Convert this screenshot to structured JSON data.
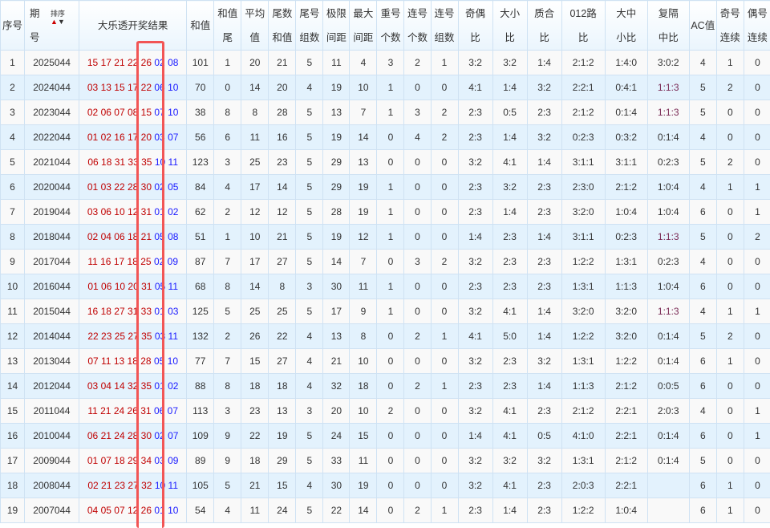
{
  "header": {
    "seq": "序号",
    "issue_top": "期",
    "issue_bottom": "号",
    "sort_label": "排序",
    "sort_up_icon": "arrow-up-icon",
    "sort_down_icon": "arrow-down-icon",
    "result": "大乐透开奖结果",
    "sum": "和值",
    "cols": [
      [
        "和值",
        "尾"
      ],
      [
        "平均",
        "值"
      ],
      [
        "尾数",
        "和值"
      ],
      [
        "尾号",
        "组数"
      ],
      [
        "极限",
        "间距"
      ],
      [
        "最大",
        "间距"
      ],
      [
        "重号",
        "个数"
      ],
      [
        "连号",
        "个数"
      ],
      [
        "连号",
        "组数"
      ],
      [
        "奇偶",
        "比"
      ],
      [
        "大小",
        "比"
      ],
      [
        "质合",
        "比"
      ],
      [
        "012路",
        "比"
      ],
      [
        "大中",
        "小比"
      ],
      [
        "复隔",
        "中比"
      ],
      [
        "AC值",
        ""
      ],
      [
        "奇号",
        "连续"
      ],
      [
        "偶号",
        "连续"
      ]
    ]
  },
  "colors": {
    "front": "#c00000",
    "back": "#1a1aff",
    "highlight_box": "#f25555",
    "row_alt": "#e3f2fd"
  },
  "rows": [
    {
      "seq": "1",
      "issue": "2025044",
      "front": [
        "15",
        "17",
        "21",
        "22",
        "26"
      ],
      "back": [
        "02",
        "08"
      ],
      "sum": "101",
      "stats": [
        "1",
        "20",
        "21",
        "5",
        "11",
        "4",
        "3",
        "2",
        "1",
        "3:2",
        "3:2",
        "1:4",
        "2:1:2",
        "1:4:0",
        "3:0:2",
        "4",
        "1",
        "0"
      ]
    },
    {
      "seq": "2",
      "issue": "2024044",
      "front": [
        "03",
        "13",
        "15",
        "17",
        "22"
      ],
      "back": [
        "06",
        "10"
      ],
      "sum": "70",
      "stats": [
        "0",
        "14",
        "20",
        "4",
        "19",
        "10",
        "1",
        "0",
        "0",
        "4:1",
        "1:4",
        "3:2",
        "2:2:1",
        "0:4:1",
        "1:1:3",
        "5",
        "2",
        "0"
      ]
    },
    {
      "seq": "3",
      "issue": "2023044",
      "front": [
        "02",
        "06",
        "07",
        "08",
        "15"
      ],
      "back": [
        "07",
        "10"
      ],
      "sum": "38",
      "stats": [
        "8",
        "8",
        "28",
        "5",
        "13",
        "7",
        "1",
        "3",
        "2",
        "2:3",
        "0:5",
        "2:3",
        "2:1:2",
        "0:1:4",
        "1:1:3",
        "5",
        "0",
        "0"
      ]
    },
    {
      "seq": "4",
      "issue": "2022044",
      "front": [
        "01",
        "02",
        "16",
        "17",
        "20"
      ],
      "back": [
        "03",
        "07"
      ],
      "sum": "56",
      "stats": [
        "6",
        "11",
        "16",
        "5",
        "19",
        "14",
        "0",
        "4",
        "2",
        "2:3",
        "1:4",
        "3:2",
        "0:2:3",
        "0:3:2",
        "0:1:4",
        "4",
        "0",
        "0"
      ]
    },
    {
      "seq": "5",
      "issue": "2021044",
      "front": [
        "06",
        "18",
        "31",
        "33",
        "35"
      ],
      "back": [
        "10",
        "11"
      ],
      "sum": "123",
      "stats": [
        "3",
        "25",
        "23",
        "5",
        "29",
        "13",
        "0",
        "0",
        "0",
        "3:2",
        "4:1",
        "1:4",
        "3:1:1",
        "3:1:1",
        "0:2:3",
        "5",
        "2",
        "0"
      ]
    },
    {
      "seq": "6",
      "issue": "2020044",
      "front": [
        "01",
        "03",
        "22",
        "28",
        "30"
      ],
      "back": [
        "02",
        "05"
      ],
      "sum": "84",
      "stats": [
        "4",
        "17",
        "14",
        "5",
        "29",
        "19",
        "1",
        "0",
        "0",
        "2:3",
        "3:2",
        "2:3",
        "2:3:0",
        "2:1:2",
        "1:0:4",
        "4",
        "1",
        "1"
      ]
    },
    {
      "seq": "7",
      "issue": "2019044",
      "front": [
        "03",
        "06",
        "10",
        "12",
        "31"
      ],
      "back": [
        "01",
        "02"
      ],
      "sum": "62",
      "stats": [
        "2",
        "12",
        "12",
        "5",
        "28",
        "19",
        "1",
        "0",
        "0",
        "2:3",
        "1:4",
        "2:3",
        "3:2:0",
        "1:0:4",
        "1:0:4",
        "6",
        "0",
        "1"
      ]
    },
    {
      "seq": "8",
      "issue": "2018044",
      "front": [
        "02",
        "04",
        "06",
        "18",
        "21"
      ],
      "back": [
        "05",
        "08"
      ],
      "sum": "51",
      "stats": [
        "1",
        "10",
        "21",
        "5",
        "19",
        "12",
        "1",
        "0",
        "0",
        "1:4",
        "2:3",
        "1:4",
        "3:1:1",
        "0:2:3",
        "1:1:3",
        "5",
        "0",
        "2"
      ]
    },
    {
      "seq": "9",
      "issue": "2017044",
      "front": [
        "11",
        "16",
        "17",
        "18",
        "25"
      ],
      "back": [
        "02",
        "09"
      ],
      "sum": "87",
      "stats": [
        "7",
        "17",
        "27",
        "5",
        "14",
        "7",
        "0",
        "3",
        "2",
        "3:2",
        "2:3",
        "2:3",
        "1:2:2",
        "1:3:1",
        "0:2:3",
        "4",
        "0",
        "0"
      ]
    },
    {
      "seq": "10",
      "issue": "2016044",
      "front": [
        "01",
        "06",
        "10",
        "20",
        "31"
      ],
      "back": [
        "05",
        "11"
      ],
      "sum": "68",
      "stats": [
        "8",
        "14",
        "8",
        "3",
        "30",
        "11",
        "1",
        "0",
        "0",
        "2:3",
        "2:3",
        "2:3",
        "1:3:1",
        "1:1:3",
        "1:0:4",
        "6",
        "0",
        "0"
      ]
    },
    {
      "seq": "11",
      "issue": "2015044",
      "front": [
        "16",
        "18",
        "27",
        "31",
        "33"
      ],
      "back": [
        "01",
        "03"
      ],
      "sum": "125",
      "stats": [
        "5",
        "25",
        "25",
        "5",
        "17",
        "9",
        "1",
        "0",
        "0",
        "3:2",
        "4:1",
        "1:4",
        "3:2:0",
        "3:2:0",
        "1:1:3",
        "4",
        "1",
        "1"
      ]
    },
    {
      "seq": "12",
      "issue": "2014044",
      "front": [
        "22",
        "23",
        "25",
        "27",
        "35"
      ],
      "back": [
        "03",
        "11"
      ],
      "sum": "132",
      "stats": [
        "2",
        "26",
        "22",
        "4",
        "13",
        "8",
        "0",
        "2",
        "1",
        "4:1",
        "5:0",
        "1:4",
        "1:2:2",
        "3:2:0",
        "0:1:4",
        "5",
        "2",
        "0"
      ]
    },
    {
      "seq": "13",
      "issue": "2013044",
      "front": [
        "07",
        "11",
        "13",
        "18",
        "28"
      ],
      "back": [
        "05",
        "10"
      ],
      "sum": "77",
      "stats": [
        "7",
        "15",
        "27",
        "4",
        "21",
        "10",
        "0",
        "0",
        "0",
        "3:2",
        "2:3",
        "3:2",
        "1:3:1",
        "1:2:2",
        "0:1:4",
        "6",
        "1",
        "0"
      ]
    },
    {
      "seq": "14",
      "issue": "2012044",
      "front": [
        "03",
        "04",
        "14",
        "32",
        "35"
      ],
      "back": [
        "01",
        "02"
      ],
      "sum": "88",
      "stats": [
        "8",
        "18",
        "18",
        "4",
        "32",
        "18",
        "0",
        "2",
        "1",
        "2:3",
        "2:3",
        "1:4",
        "1:1:3",
        "2:1:2",
        "0:0:5",
        "6",
        "0",
        "0"
      ]
    },
    {
      "seq": "15",
      "issue": "2011044",
      "front": [
        "11",
        "21",
        "24",
        "26",
        "31"
      ],
      "back": [
        "06",
        "07"
      ],
      "sum": "113",
      "stats": [
        "3",
        "23",
        "13",
        "3",
        "20",
        "10",
        "2",
        "0",
        "0",
        "3:2",
        "4:1",
        "2:3",
        "2:1:2",
        "2:2:1",
        "2:0:3",
        "4",
        "0",
        "1"
      ]
    },
    {
      "seq": "16",
      "issue": "2010044",
      "front": [
        "06",
        "21",
        "24",
        "28",
        "30"
      ],
      "back": [
        "02",
        "07"
      ],
      "sum": "109",
      "stats": [
        "9",
        "22",
        "19",
        "5",
        "24",
        "15",
        "0",
        "0",
        "0",
        "1:4",
        "4:1",
        "0:5",
        "4:1:0",
        "2:2:1",
        "0:1:4",
        "6",
        "0",
        "1"
      ]
    },
    {
      "seq": "17",
      "issue": "2009044",
      "front": [
        "01",
        "07",
        "18",
        "29",
        "34"
      ],
      "back": [
        "03",
        "09"
      ],
      "sum": "89",
      "stats": [
        "9",
        "18",
        "29",
        "5",
        "33",
        "11",
        "0",
        "0",
        "0",
        "3:2",
        "3:2",
        "3:2",
        "1:3:1",
        "2:1:2",
        "0:1:4",
        "5",
        "0",
        "0"
      ]
    },
    {
      "seq": "18",
      "issue": "2008044",
      "front": [
        "02",
        "21",
        "23",
        "27",
        "32"
      ],
      "back": [
        "10",
        "11"
      ],
      "sum": "105",
      "stats": [
        "5",
        "21",
        "15",
        "4",
        "30",
        "19",
        "0",
        "0",
        "0",
        "3:2",
        "4:1",
        "2:3",
        "2:0:3",
        "2:2:1",
        "",
        "6",
        "1",
        "0"
      ]
    },
    {
      "seq": "19",
      "issue": "2007044",
      "front": [
        "04",
        "05",
        "07",
        "12",
        "26"
      ],
      "back": [
        "01",
        "10"
      ],
      "sum": "54",
      "stats": [
        "4",
        "11",
        "24",
        "5",
        "22",
        "14",
        "0",
        "2",
        "1",
        "2:3",
        "1:4",
        "2:3",
        "1:2:2",
        "1:0:4",
        "",
        "6",
        "1",
        "0"
      ]
    }
  ]
}
